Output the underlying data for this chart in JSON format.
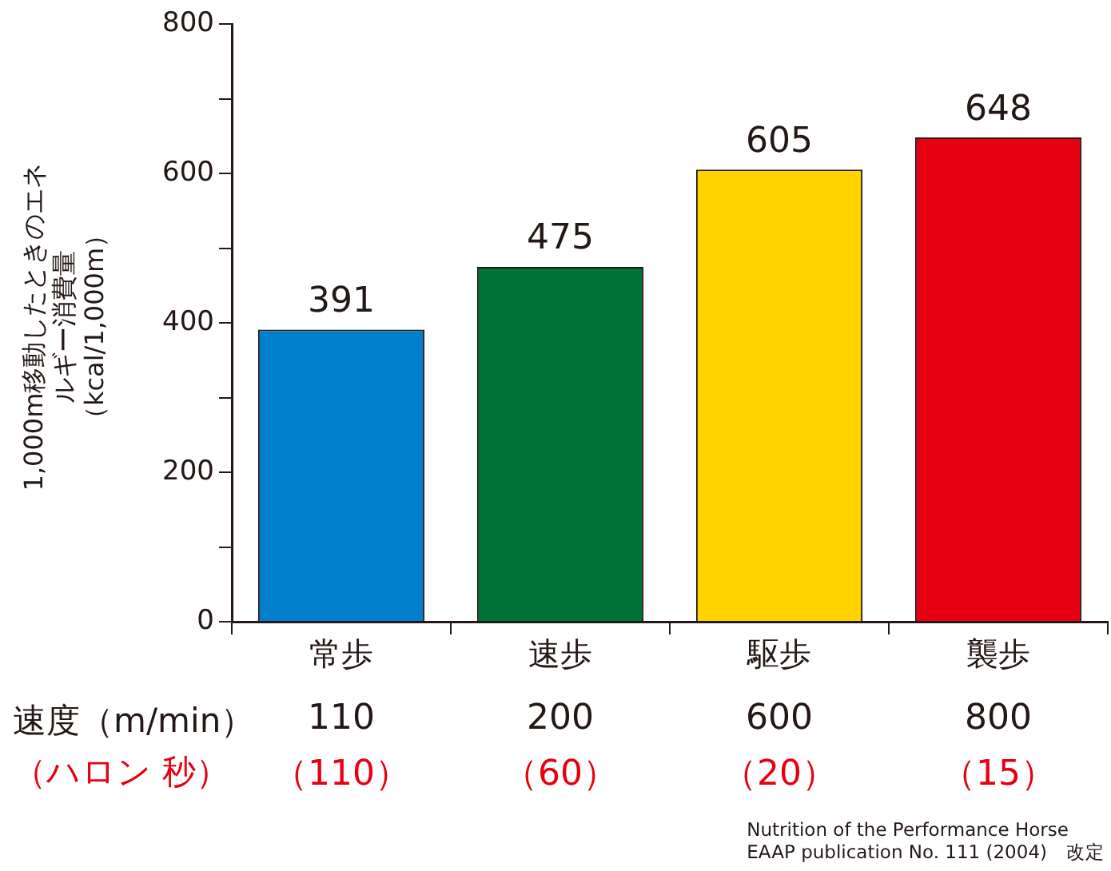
{
  "chart_data": {
    "type": "bar",
    "ylabel": "1,000m移動したときのエネルギー消費量（kcal/1,000m）",
    "categories": [
      "常歩",
      "速歩",
      "駆歩",
      "襲歩"
    ],
    "values": [
      391,
      475,
      605,
      648
    ],
    "colors": [
      "#0080cc",
      "#007236",
      "#ffd200",
      "#e60012"
    ],
    "ylim": [
      0,
      800
    ],
    "yticks": [
      0,
      {
        "value": 100,
        "label": null
      },
      200,
      {
        "value": 300,
        "label": null
      },
      400,
      {
        "value": 500,
        "label": null
      },
      600,
      {
        "value": 700,
        "label": null
      },
      800
    ],
    "data_labels": true,
    "grid": false,
    "legend": false,
    "annotations": [
      "速度（m/min）",
      "110",
      "200",
      "600",
      "800",
      "（ハロン 秒）",
      "（110）",
      "（60）",
      "（20）",
      "（15）",
      "Nutrition of the Performance Horse",
      "EAAP publication No. 111 (2004)　改定"
    ]
  }
}
